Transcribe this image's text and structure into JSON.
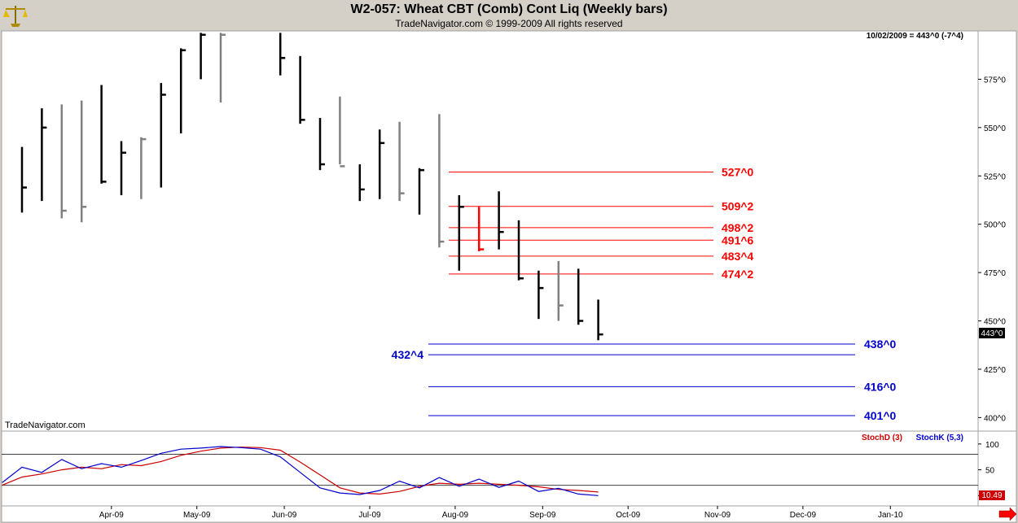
{
  "window": {
    "title": "W2-057:  Wheat CBT (Comb) Cont Liq  (Weekly bars)",
    "subtitle": "TradeNavigator.com © 1999-2009 All rights reserved",
    "logo_icon": "scales-icon"
  },
  "chart_data": [
    {
      "type": "ohlc",
      "title": "W2-057:  Wheat CBT (Comb) Cont Liq  (Weekly bars)",
      "subtitle": "TradeNavigator.com © 1999-2009 All rights reserved",
      "quote_readout": "10/02/2009 = 443^0 (-7^4)",
      "last_price_label": "443^0",
      "watermark": "TradeNavigator.com",
      "y_ticks": [
        "575^0",
        "550^0",
        "525^0",
        "500^0",
        "475^0",
        "450^0",
        "425^0",
        "400^0"
      ],
      "y_tick_values": [
        575,
        550,
        525,
        500,
        475,
        450,
        425,
        400
      ],
      "ylim": [
        393,
        600
      ],
      "x_ticks": [
        "Apr-09",
        "May-09",
        "Jun-09",
        "Jul-09",
        "Aug-09",
        "Sep-09",
        "Oct-09",
        "Nov-09",
        "Dec-09",
        "Jan-10"
      ],
      "x_tick_weeks": [
        4.5,
        8.8,
        13.2,
        17.5,
        21.8,
        26.2,
        30.5,
        35,
        39.3,
        43.7
      ],
      "bars": [
        {
          "w": 0,
          "h": 540,
          "l": 506,
          "c": 519,
          "color": "#000000"
        },
        {
          "w": 1,
          "h": 560,
          "l": 512,
          "c": 550,
          "color": "#000000"
        },
        {
          "w": 2,
          "h": 562,
          "l": 503,
          "c": 507,
          "color": "#808080"
        },
        {
          "w": 3,
          "h": 564,
          "l": 501,
          "c": 509,
          "color": "#808080"
        },
        {
          "w": 4,
          "h": 572,
          "l": 521,
          "c": 522,
          "color": "#000000"
        },
        {
          "w": 5,
          "h": 543,
          "l": 515,
          "c": 537,
          "color": "#000000"
        },
        {
          "w": 6,
          "h": 545,
          "l": 513,
          "c": 544,
          "color": "#808080"
        },
        {
          "w": 7,
          "h": 573,
          "l": 519,
          "c": 567,
          "color": "#000000"
        },
        {
          "w": 8,
          "h": 591,
          "l": 547,
          "c": 590,
          "color": "#000000"
        },
        {
          "w": 9,
          "h": 599,
          "l": 575,
          "c": 598,
          "color": "#000000"
        },
        {
          "w": 10,
          "h": 599,
          "l": 563,
          "c": 598,
          "color": "#808080"
        },
        {
          "w": 13,
          "h": 599,
          "l": 577,
          "c": 586,
          "color": "#000000"
        },
        {
          "w": 14,
          "h": 587,
          "l": 552,
          "c": 554,
          "color": "#000000"
        },
        {
          "w": 15,
          "h": 555,
          "l": 528,
          "c": 531,
          "color": "#000000"
        },
        {
          "w": 16,
          "h": 566,
          "l": 531,
          "c": 530,
          "color": "#808080"
        },
        {
          "w": 17,
          "h": 531,
          "l": 512,
          "c": 518,
          "color": "#000000"
        },
        {
          "w": 18,
          "h": 549,
          "l": 513,
          "c": 542,
          "color": "#000000"
        },
        {
          "w": 19,
          "h": 553,
          "l": 512,
          "c": 516,
          "color": "#808080"
        },
        {
          "w": 20,
          "h": 529,
          "l": 505,
          "c": 528,
          "color": "#000000"
        },
        {
          "w": 21,
          "h": 557,
          "l": 488,
          "c": 491,
          "color": "#808080"
        },
        {
          "w": 22,
          "h": 515,
          "l": 476,
          "c": 509,
          "color": "#000000"
        },
        {
          "w": 23,
          "h": 509,
          "l": 486,
          "c": 487,
          "color": "#ff0000"
        },
        {
          "w": 24,
          "h": 517,
          "l": 487,
          "c": 496,
          "color": "#000000"
        },
        {
          "w": 25,
          "h": 502,
          "l": 471,
          "c": 472,
          "color": "#000000"
        },
        {
          "w": 26,
          "h": 476,
          "l": 451,
          "c": 467,
          "color": "#000000"
        },
        {
          "w": 27,
          "h": 481,
          "l": 450,
          "c": 458,
          "color": "#808080"
        },
        {
          "w": 28,
          "h": 477,
          "l": 448,
          "c": 450,
          "color": "#000000"
        },
        {
          "w": 29,
          "h": 461,
          "l": 440,
          "c": 443,
          "color": "#000000"
        }
      ],
      "resistance_levels": [
        {
          "label": "527^0",
          "value": 527,
          "color": "#ff0000"
        },
        {
          "label": "509^2",
          "value": 509.25,
          "color": "#ff0000"
        },
        {
          "label": "498^2",
          "value": 498.25,
          "color": "#ff0000"
        },
        {
          "label": "491^6",
          "value": 491.75,
          "color": "#ff0000"
        },
        {
          "label": "483^4",
          "value": 483.5,
          "color": "#ff0000"
        },
        {
          "label": "474^2",
          "value": 474.25,
          "color": "#ff0000"
        }
      ],
      "support_levels": [
        {
          "label": "438^0",
          "value": 438,
          "color": "#0000cc"
        },
        {
          "label": "432^4",
          "value": 432.5,
          "color": "#0000cc"
        },
        {
          "label": "416^0",
          "value": 416,
          "color": "#0000cc"
        },
        {
          "label": "401^0",
          "value": 401,
          "color": "#0000cc"
        }
      ]
    },
    {
      "type": "line",
      "series": [
        {
          "name": "StochD (3)",
          "color": "#cc0000",
          "values": [
            20,
            36,
            42,
            50,
            55,
            52,
            60,
            58,
            66,
            78,
            86,
            92,
            94,
            93,
            88,
            65,
            40,
            15,
            5,
            3,
            8,
            18,
            24,
            22,
            24,
            22,
            20,
            17,
            12,
            10,
            7
          ]
        },
        {
          "name": "StochK (5,3)",
          "color": "#0000cc",
          "values": [
            25,
            55,
            45,
            70,
            52,
            62,
            55,
            68,
            82,
            90,
            92,
            95,
            93,
            90,
            75,
            45,
            15,
            5,
            2,
            10,
            28,
            15,
            35,
            18,
            32,
            16,
            28,
            8,
            14,
            3,
            0
          ]
        }
      ],
      "x_weeks_start": -1,
      "y_ticks": [
        "100",
        "50",
        "0"
      ],
      "y_tick_values": [
        100,
        50,
        0
      ],
      "ylim": [
        -20,
        125
      ],
      "reference_lines": [
        80,
        20
      ],
      "last_value_label": "10.49"
    }
  ]
}
